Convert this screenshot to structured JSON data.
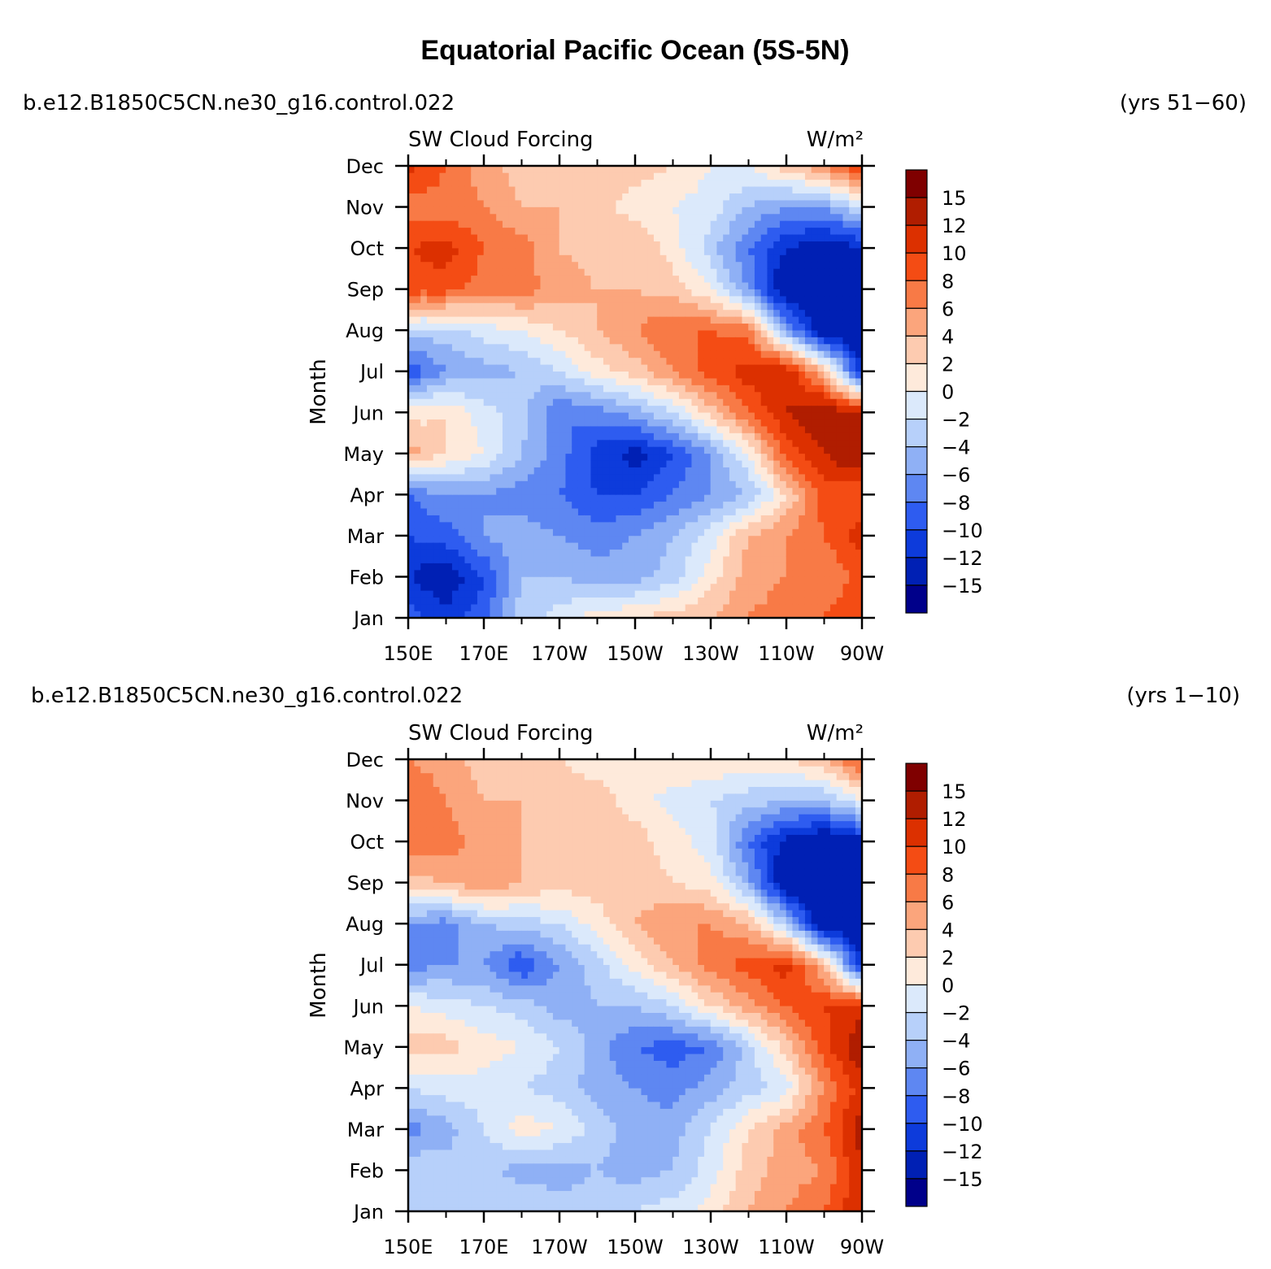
{
  "chart_data": {
    "type": "heatmap",
    "title": "Equatorial Pacific Ocean (5S-5N)",
    "variable": "SW Cloud Forcing",
    "units": "W/m²",
    "ylabel": "Month",
    "x_ticks": [
      "150E",
      "170E",
      "170W",
      "150W",
      "130W",
      "110W",
      "90W"
    ],
    "y_ticks": [
      "Jan",
      "Feb",
      "Mar",
      "Apr",
      "May",
      "Jun",
      "Jul",
      "Aug",
      "Sep",
      "Oct",
      "Nov",
      "Dec"
    ],
    "xlim_lon": [
      150,
      270
    ],
    "colorbar": {
      "levels": [
        "15",
        "12",
        "10",
        "8",
        "6",
        "4",
        "2",
        "0",
        "−2",
        "−4",
        "−6",
        "−8",
        "−10",
        "−12",
        "−15"
      ],
      "colors": [
        "#7f0000",
        "#b01d00",
        "#dc3000",
        "#f44c14",
        "#f87a46",
        "#fba57c",
        "#fdcbb0",
        "#feeadb",
        "#dbe9fb",
        "#b7d0fa",
        "#8fb0f5",
        "#5e87f2",
        "#2e5cf0",
        "#0d3bdb",
        "#0020b4",
        "#00008a"
      ]
    },
    "panels": [
      {
        "case": "b.e12.B1850C5CN.ne30_g16.control.022",
        "years": "(yrs 51−60)",
        "grid_months": [
          "Jan",
          "Feb",
          "Mar",
          "Apr",
          "May",
          "Jun",
          "Jul",
          "Aug",
          "Sep",
          "Oct",
          "Nov",
          "Dec"
        ],
        "grid_lon": [
          150,
          160,
          170,
          180,
          190,
          200,
          210,
          220,
          230,
          240,
          250,
          260,
          270
        ],
        "values": [
          [
            -9,
            -11,
            -9,
            -3,
            -1,
            1,
            2,
            3,
            4,
            6,
            7,
            8,
            10
          ],
          [
            -12,
            -14,
            -10,
            -4,
            -4,
            -5,
            -5,
            -3,
            1,
            5,
            6,
            6,
            9
          ],
          [
            -10,
            -9,
            -6,
            -5,
            -6,
            -7,
            -6,
            -4,
            -1,
            4,
            6,
            8,
            11
          ],
          [
            -8,
            -6,
            -6,
            -7,
            -8,
            -10,
            -10,
            -8,
            -6,
            -4,
            2,
            9,
            8
          ],
          [
            5,
            2,
            0,
            -4,
            -7,
            -11,
            -13,
            -10,
            -6,
            0,
            9,
            12,
            15
          ],
          [
            1,
            2,
            -1,
            -3,
            -8,
            -7,
            -5,
            -2,
            3,
            8,
            12,
            14,
            12
          ],
          [
            -10,
            -6,
            -5,
            -4,
            -2,
            1,
            3,
            6,
            9,
            11,
            12,
            4,
            -12
          ],
          [
            -3,
            -3,
            -1,
            0,
            2,
            4,
            6,
            8,
            8,
            7,
            -5,
            -15,
            -15
          ],
          [
            9,
            9,
            7,
            7,
            5,
            4,
            4,
            3,
            0,
            -6,
            -15,
            -15,
            -15
          ],
          [
            10,
            11,
            8,
            7,
            4,
            3,
            4,
            1,
            -3,
            -8,
            -12,
            -14,
            -12
          ],
          [
            7,
            7,
            6,
            4,
            4,
            3,
            1,
            0,
            -1,
            -4,
            -6,
            -6,
            -2
          ],
          [
            11,
            8,
            5,
            3,
            2,
            3,
            3,
            2,
            0,
            0,
            3,
            6,
            10
          ]
        ]
      },
      {
        "case": "b.e12.B1850C5CN.ne30_g16.control.022",
        "years": "(yrs 1−10)",
        "grid_months": [
          "Jan",
          "Feb",
          "Mar",
          "Apr",
          "May",
          "Jun",
          "Jul",
          "Aug",
          "Sep",
          "Oct",
          "Nov",
          "Dec"
        ],
        "grid_lon": [
          150,
          160,
          170,
          180,
          190,
          200,
          210,
          220,
          230,
          240,
          250,
          260,
          270
        ],
        "values": [
          [
            -3,
            -2,
            -4,
            -2,
            -3,
            -3,
            -2,
            -1,
            1,
            4,
            6,
            8,
            12
          ],
          [
            -2,
            -3,
            -3,
            -5,
            -5,
            -4,
            -5,
            -4,
            -1,
            3,
            5,
            6,
            12
          ],
          [
            -7,
            -5,
            -2,
            1,
            0,
            -3,
            -5,
            -5,
            -2,
            2,
            5,
            8,
            13
          ],
          [
            -2,
            -1,
            -1,
            -2,
            -3,
            -5,
            -6,
            -7,
            -5,
            -3,
            -1,
            6,
            11
          ],
          [
            3,
            3,
            1,
            0,
            -2,
            -5,
            -8,
            -9,
            -8,
            -3,
            3,
            9,
            14
          ],
          [
            0,
            -1,
            -2,
            -3,
            -5,
            -4,
            -4,
            -2,
            2,
            5,
            8,
            10,
            11
          ],
          [
            -7,
            -6,
            -6,
            -10,
            -6,
            -3,
            1,
            4,
            7,
            9,
            11,
            4,
            -12
          ],
          [
            -6,
            -7,
            -4,
            -3,
            -2,
            1,
            4,
            6,
            6,
            4,
            -3,
            -15,
            -15
          ],
          [
            3,
            4,
            6,
            4,
            3,
            3,
            3,
            2,
            1,
            -5,
            -15,
            -15,
            -15
          ],
          [
            8,
            7,
            5,
            4,
            3,
            2,
            3,
            1,
            -1,
            -8,
            -13,
            -15,
            -13
          ],
          [
            8,
            6,
            4,
            4,
            3,
            3,
            1,
            -1,
            -2,
            -3,
            -4,
            -4,
            0
          ],
          [
            6,
            5,
            3,
            2,
            2,
            1,
            1,
            2,
            2,
            1,
            2,
            4,
            9
          ]
        ]
      }
    ]
  }
}
